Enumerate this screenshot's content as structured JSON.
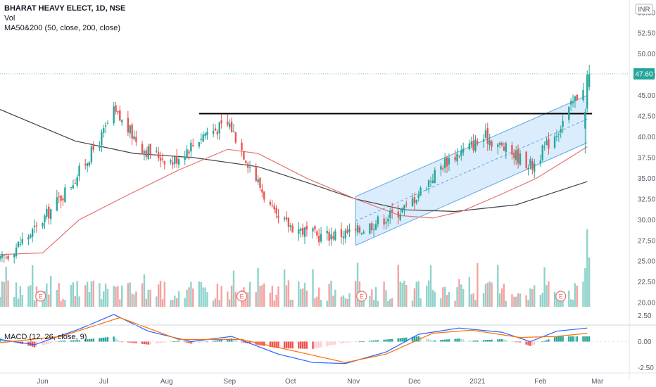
{
  "header": {
    "symbol": "BHARAT HEAVY ELECT, 1D, NSE",
    "vol_label": "Vol",
    "ma_label": "MA50&200 (50, close, 200, close)",
    "currency": "INR",
    "macd_label": "MACD (12, 26, close, 9)"
  },
  "colors": {
    "up": "#26a69a",
    "down": "#ef5350",
    "vol_up": "#8fd3cb",
    "vol_down": "#f4a3a2",
    "ma50": "#e57373",
    "ma200": "#424242",
    "channel_fill": "#cfe6fb",
    "channel_line": "#5aa9e6",
    "resistance": "#000000",
    "macd_line": "#2962ff",
    "signal_line": "#ff6d00",
    "price_tag": "#26a69a"
  },
  "chart_data": [
    {
      "type": "candlestick",
      "title": "BHARAT HEAVY ELECT, 1D, NSE",
      "y_axis_ticks": [
        "55.00",
        "52.50",
        "50.00",
        "47.50",
        "45.00",
        "42.50",
        "40.00",
        "37.50",
        "35.00",
        "32.50",
        "30.00",
        "27.50",
        "25.00",
        "22.50",
        "20.00"
      ],
      "x_axis_ticks": [
        "Jun",
        "Jul",
        "Aug",
        "Sep",
        "Oct",
        "Nov",
        "Dec",
        "2021",
        "Feb",
        "Mar"
      ],
      "ylim": [
        19.5,
        56
      ],
      "last_price": "47.60",
      "last_price_value": 47.6,
      "monthly_closes": [
        {
          "date": "2020-05-11",
          "close": 25.0
        },
        {
          "date": "2020-05-29",
          "close": 29.0
        },
        {
          "date": "2020-06-17",
          "close": 35.0
        },
        {
          "date": "2020-06-30",
          "close": 40.0
        },
        {
          "date": "2020-07-06",
          "close": 43.0
        },
        {
          "date": "2020-07-21",
          "close": 38.5
        },
        {
          "date": "2020-08-04",
          "close": 37.0
        },
        {
          "date": "2020-08-20",
          "close": 40.5
        },
        {
          "date": "2020-09-01",
          "close": 41.5
        },
        {
          "date": "2020-09-24",
          "close": 30.0
        },
        {
          "date": "2020-10-14",
          "close": 28.0
        },
        {
          "date": "2020-11-02",
          "close": 28.5
        },
        {
          "date": "2020-11-27",
          "close": 31.5
        },
        {
          "date": "2020-12-16",
          "close": 37.0
        },
        {
          "date": "2021-01-05",
          "close": 40.0
        },
        {
          "date": "2021-01-28",
          "close": 36.5
        },
        {
          "date": "2021-02-10",
          "close": 41.0
        },
        {
          "date": "2021-02-25",
          "close": 47.6
        }
      ],
      "resistance_level": 42.8,
      "channel": {
        "start": "2020-11-02",
        "end": "2021-02-24",
        "upper": [
          32.8,
          45.0
        ],
        "lower": [
          26.9,
          39.3
        ],
        "mid": [
          29.85,
          42.15
        ]
      },
      "ma50": [
        {
          "date": "2020-05-11",
          "value": 25.8
        },
        {
          "date": "2020-06-01",
          "value": 26.0
        },
        {
          "date": "2020-06-19",
          "value": 30.0
        },
        {
          "date": "2020-07-13",
          "value": 33.0
        },
        {
          "date": "2020-08-07",
          "value": 36.0
        },
        {
          "date": "2020-08-31",
          "value": 38.5
        },
        {
          "date": "2020-09-15",
          "value": 38.0
        },
        {
          "date": "2020-10-09",
          "value": 35.0
        },
        {
          "date": "2020-11-02",
          "value": 32.5
        },
        {
          "date": "2020-11-24",
          "value": 30.5
        },
        {
          "date": "2020-12-10",
          "value": 30.2
        },
        {
          "date": "2020-12-24",
          "value": 31.0
        },
        {
          "date": "2021-01-12",
          "value": 33.0
        },
        {
          "date": "2021-01-30",
          "value": 35.0
        },
        {
          "date": "2021-02-24",
          "value": 38.8
        }
      ],
      "ma200": [
        {
          "date": "2020-05-11",
          "value": 43.3
        },
        {
          "date": "2020-06-17",
          "value": 39.5
        },
        {
          "date": "2020-07-16",
          "value": 38.0
        },
        {
          "date": "2020-08-14",
          "value": 37.5
        },
        {
          "date": "2020-09-15",
          "value": 36.4
        },
        {
          "date": "2020-10-09",
          "value": 34.5
        },
        {
          "date": "2020-11-02",
          "value": 32.5
        },
        {
          "date": "2020-11-26",
          "value": 31.2
        },
        {
          "date": "2020-12-21",
          "value": 31.0
        },
        {
          "date": "2021-01-20",
          "value": 31.8
        },
        {
          "date": "2021-02-24",
          "value": 34.6
        }
      ],
      "earnings_markers": [
        {
          "date": "2020-05-31",
          "label": "E"
        },
        {
          "date": "2020-09-07",
          "label": "E"
        },
        {
          "date": "2020-11-05",
          "label": "E"
        },
        {
          "date": "2021-02-11",
          "label": "E"
        }
      ]
    },
    {
      "type": "macd",
      "title": "MACD (12, 26, close, 9)",
      "y_axis_ticks": [
        "2.50",
        "0.00",
        "-2.50"
      ],
      "ylim": [
        -3,
        3
      ],
      "macd": [
        {
          "date": "2020-05-11",
          "value": 0.2
        },
        {
          "date": "2020-05-28",
          "value": -0.3
        },
        {
          "date": "2020-06-19",
          "value": 1.2
        },
        {
          "date": "2020-07-06",
          "value": 2.6
        },
        {
          "date": "2020-07-23",
          "value": 1.0
        },
        {
          "date": "2020-08-13",
          "value": 0.0
        },
        {
          "date": "2020-09-02",
          "value": 0.5
        },
        {
          "date": "2020-09-25",
          "value": -1.2
        },
        {
          "date": "2020-10-12",
          "value": -2.0
        },
        {
          "date": "2020-10-28",
          "value": -2.1
        },
        {
          "date": "2020-11-17",
          "value": -1.0
        },
        {
          "date": "2020-12-03",
          "value": 0.7
        },
        {
          "date": "2020-12-23",
          "value": 1.3
        },
        {
          "date": "2021-01-13",
          "value": 0.9
        },
        {
          "date": "2021-01-27",
          "value": 0.0
        },
        {
          "date": "2021-02-09",
          "value": 1.0
        },
        {
          "date": "2021-02-24",
          "value": 1.3
        }
      ],
      "signal": [
        {
          "date": "2020-05-11",
          "value": -0.1
        },
        {
          "date": "2020-06-10",
          "value": 0.5
        },
        {
          "date": "2020-07-09",
          "value": 2.3
        },
        {
          "date": "2020-08-07",
          "value": 0.2
        },
        {
          "date": "2020-09-07",
          "value": 0.2
        },
        {
          "date": "2020-10-05",
          "value": -1.0
        },
        {
          "date": "2020-10-28",
          "value": -2.0
        },
        {
          "date": "2020-11-17",
          "value": -1.2
        },
        {
          "date": "2020-12-10",
          "value": 0.8
        },
        {
          "date": "2020-12-29",
          "value": 1.1
        },
        {
          "date": "2021-01-22",
          "value": 0.4
        },
        {
          "date": "2021-02-09",
          "value": 0.5
        },
        {
          "date": "2021-02-24",
          "value": 0.8
        }
      ]
    }
  ]
}
